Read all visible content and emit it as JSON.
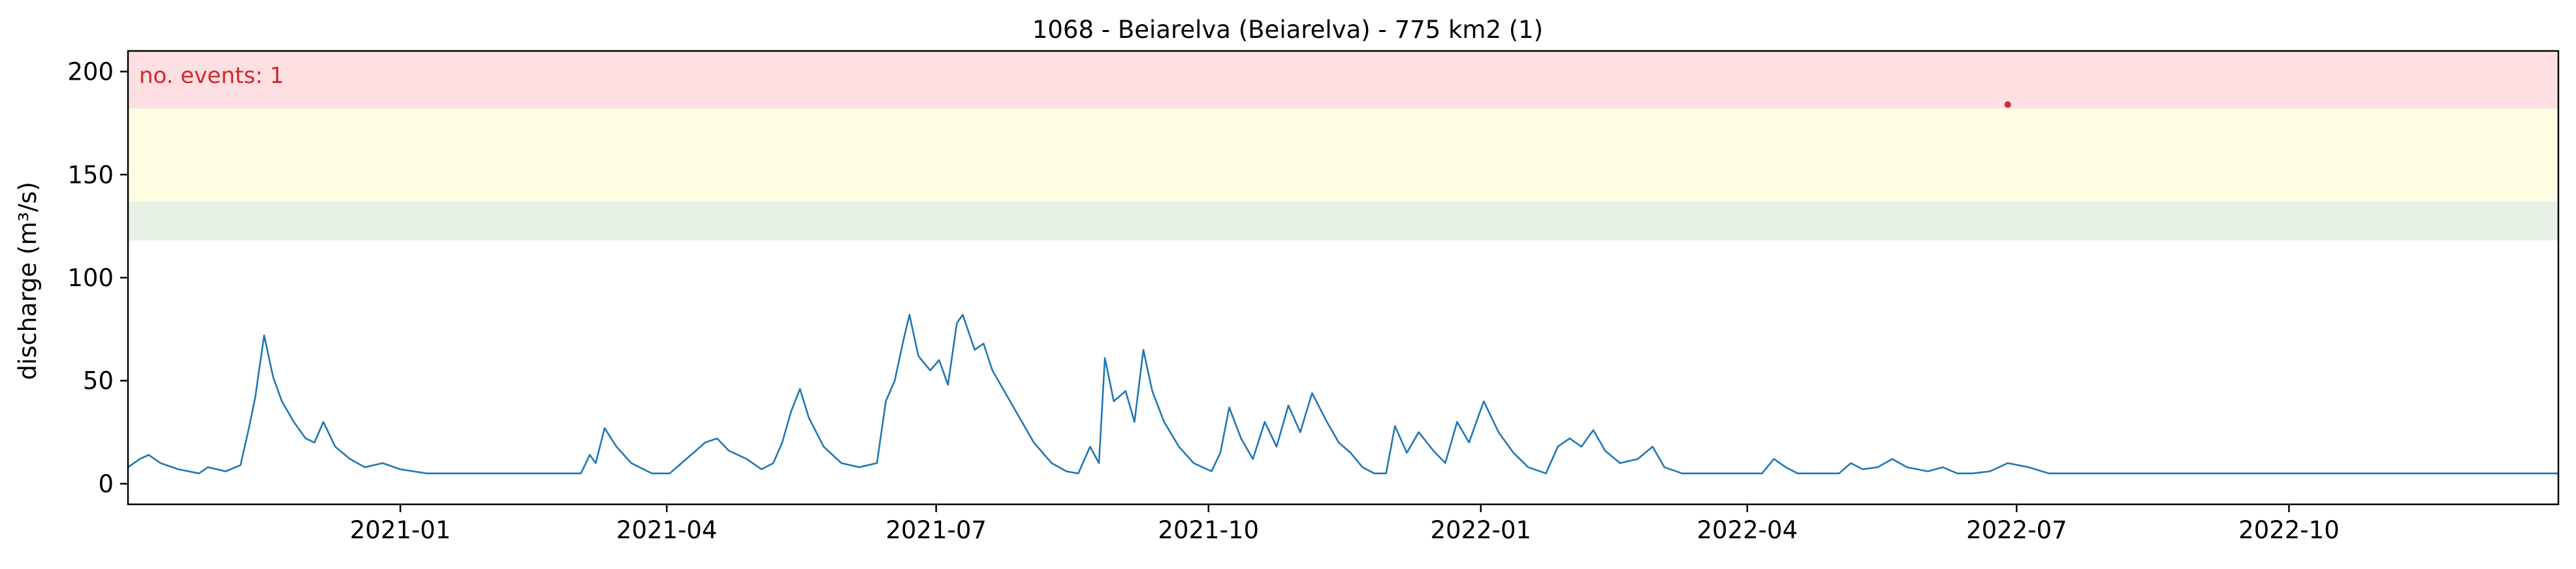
{
  "chart_data": {
    "type": "line",
    "title": "1068 - Beiarelva (Beiarelva) - 775 km2 (1)",
    "xlabel": "",
    "ylabel": "discharge (m³/s)",
    "x_range": [
      "2020-10-01",
      "2022-12-31"
    ],
    "ylim": [
      -10,
      210
    ],
    "y_ticks": [
      0,
      50,
      100,
      150,
      200
    ],
    "x_ticks": [
      {
        "date": "2021-01-01",
        "label": "2021-01"
      },
      {
        "date": "2021-04-01",
        "label": "2021-04"
      },
      {
        "date": "2021-07-01",
        "label": "2021-07"
      },
      {
        "date": "2021-10-01",
        "label": "2021-10"
      },
      {
        "date": "2022-01-01",
        "label": "2022-01"
      },
      {
        "date": "2022-04-01",
        "label": "2022-04"
      },
      {
        "date": "2022-07-01",
        "label": "2022-07"
      },
      {
        "date": "2022-10-01",
        "label": "2022-10"
      }
    ],
    "grid": false,
    "threshold_bands": [
      {
        "from": 118,
        "to": 137,
        "color": "#e7f1e5"
      },
      {
        "from": 137,
        "to": 182,
        "color": "#fefee2"
      },
      {
        "from": 182,
        "to": 210,
        "color": "#fee0e2"
      }
    ],
    "series": [
      {
        "color": "#1f77b4",
        "points": [
          [
            "2020-10-01",
            8
          ],
          [
            "2020-10-05",
            12
          ],
          [
            "2020-10-08",
            14
          ],
          [
            "2020-10-12",
            10
          ],
          [
            "2020-10-18",
            7
          ],
          [
            "2020-10-25",
            5
          ],
          [
            "2020-10-28",
            8
          ],
          [
            "2020-11-03",
            6
          ],
          [
            "2020-11-08",
            9
          ],
          [
            "2020-11-11",
            28
          ],
          [
            "2020-11-13",
            42
          ],
          [
            "2020-11-16",
            72
          ],
          [
            "2020-11-19",
            52
          ],
          [
            "2020-11-22",
            40
          ],
          [
            "2020-11-26",
            30
          ],
          [
            "2020-11-30",
            22
          ],
          [
            "2020-12-03",
            20
          ],
          [
            "2020-12-06",
            30
          ],
          [
            "2020-12-10",
            18
          ],
          [
            "2020-12-15",
            12
          ],
          [
            "2020-12-20",
            8
          ],
          [
            "2020-12-26",
            10
          ],
          [
            "2021-01-01",
            7
          ],
          [
            "2021-01-10",
            5
          ],
          [
            "2021-01-25",
            5
          ],
          [
            "2021-02-15",
            5
          ],
          [
            "2021-03-03",
            5
          ],
          [
            "2021-03-06",
            14
          ],
          [
            "2021-03-08",
            10
          ],
          [
            "2021-03-11",
            27
          ],
          [
            "2021-03-15",
            18
          ],
          [
            "2021-03-20",
            10
          ],
          [
            "2021-03-27",
            5
          ],
          [
            "2021-04-02",
            5
          ],
          [
            "2021-04-06",
            10
          ],
          [
            "2021-04-10",
            15
          ],
          [
            "2021-04-14",
            20
          ],
          [
            "2021-04-18",
            22
          ],
          [
            "2021-04-22",
            16
          ],
          [
            "2021-04-28",
            12
          ],
          [
            "2021-05-03",
            7
          ],
          [
            "2021-05-07",
            10
          ],
          [
            "2021-05-10",
            20
          ],
          [
            "2021-05-13",
            35
          ],
          [
            "2021-05-16",
            46
          ],
          [
            "2021-05-19",
            32
          ],
          [
            "2021-05-24",
            18
          ],
          [
            "2021-05-30",
            10
          ],
          [
            "2021-06-05",
            8
          ],
          [
            "2021-06-11",
            10
          ],
          [
            "2021-06-14",
            40
          ],
          [
            "2021-06-17",
            50
          ],
          [
            "2021-06-20",
            70
          ],
          [
            "2021-06-22",
            82
          ],
          [
            "2021-06-25",
            62
          ],
          [
            "2021-06-29",
            55
          ],
          [
            "2021-07-02",
            60
          ],
          [
            "2021-07-05",
            48
          ],
          [
            "2021-07-08",
            78
          ],
          [
            "2021-07-10",
            82
          ],
          [
            "2021-07-14",
            65
          ],
          [
            "2021-07-17",
            68
          ],
          [
            "2021-07-20",
            55
          ],
          [
            "2021-07-24",
            45
          ],
          [
            "2021-07-28",
            35
          ],
          [
            "2021-08-03",
            20
          ],
          [
            "2021-08-09",
            10
          ],
          [
            "2021-08-14",
            6
          ],
          [
            "2021-08-18",
            5
          ],
          [
            "2021-08-22",
            18
          ],
          [
            "2021-08-25",
            10
          ],
          [
            "2021-08-27",
            61
          ],
          [
            "2021-08-30",
            40
          ],
          [
            "2021-09-03",
            45
          ],
          [
            "2021-09-06",
            30
          ],
          [
            "2021-09-09",
            65
          ],
          [
            "2021-09-12",
            45
          ],
          [
            "2021-09-16",
            30
          ],
          [
            "2021-09-21",
            18
          ],
          [
            "2021-09-26",
            10
          ],
          [
            "2021-10-02",
            6
          ],
          [
            "2021-10-05",
            15
          ],
          [
            "2021-10-08",
            37
          ],
          [
            "2021-10-12",
            22
          ],
          [
            "2021-10-16",
            12
          ],
          [
            "2021-10-20",
            30
          ],
          [
            "2021-10-24",
            18
          ],
          [
            "2021-10-28",
            38
          ],
          [
            "2021-11-01",
            25
          ],
          [
            "2021-11-05",
            44
          ],
          [
            "2021-11-10",
            30
          ],
          [
            "2021-11-14",
            20
          ],
          [
            "2021-11-18",
            15
          ],
          [
            "2021-11-22",
            8
          ],
          [
            "2021-11-26",
            5
          ],
          [
            "2021-11-30",
            5
          ],
          [
            "2021-12-03",
            28
          ],
          [
            "2021-12-07",
            15
          ],
          [
            "2021-12-11",
            25
          ],
          [
            "2021-12-16",
            16
          ],
          [
            "2021-12-20",
            10
          ],
          [
            "2021-12-24",
            30
          ],
          [
            "2021-12-28",
            20
          ],
          [
            "2022-01-02",
            40
          ],
          [
            "2022-01-07",
            25
          ],
          [
            "2022-01-12",
            15
          ],
          [
            "2022-01-17",
            8
          ],
          [
            "2022-01-23",
            5
          ],
          [
            "2022-01-27",
            18
          ],
          [
            "2022-01-31",
            22
          ],
          [
            "2022-02-04",
            18
          ],
          [
            "2022-02-08",
            26
          ],
          [
            "2022-02-12",
            16
          ],
          [
            "2022-02-17",
            10
          ],
          [
            "2022-02-23",
            12
          ],
          [
            "2022-02-28",
            18
          ],
          [
            "2022-03-04",
            8
          ],
          [
            "2022-03-10",
            5
          ],
          [
            "2022-03-20",
            5
          ],
          [
            "2022-03-31",
            5
          ],
          [
            "2022-04-06",
            5
          ],
          [
            "2022-04-10",
            12
          ],
          [
            "2022-04-14",
            8
          ],
          [
            "2022-04-18",
            5
          ],
          [
            "2022-04-23",
            5
          ],
          [
            "2022-05-02",
            5
          ],
          [
            "2022-05-06",
            10
          ],
          [
            "2022-05-10",
            7
          ],
          [
            "2022-05-15",
            8
          ],
          [
            "2022-05-20",
            12
          ],
          [
            "2022-05-25",
            8
          ],
          [
            "2022-06-01",
            6
          ],
          [
            "2022-06-06",
            8
          ],
          [
            "2022-06-11",
            5
          ],
          [
            "2022-06-16",
            5
          ],
          [
            "2022-06-22",
            6
          ],
          [
            "2022-06-28",
            10
          ],
          [
            "2022-07-05",
            8
          ],
          [
            "2022-07-12",
            5
          ],
          [
            "2022-07-20",
            5
          ],
          [
            "2022-07-30",
            5
          ],
          [
            "2022-08-10",
            5
          ],
          [
            "2022-08-20",
            5
          ],
          [
            "2022-09-01",
            5
          ],
          [
            "2022-09-10",
            5
          ],
          [
            "2022-09-20",
            5
          ],
          [
            "2022-10-01",
            5
          ],
          [
            "2022-10-10",
            5
          ],
          [
            "2022-10-20",
            5
          ],
          [
            "2022-11-01",
            5
          ],
          [
            "2022-11-10",
            5
          ],
          [
            "2022-11-20",
            5
          ],
          [
            "2022-12-01",
            5
          ],
          [
            "2022-12-10",
            5
          ],
          [
            "2022-12-20",
            5
          ],
          [
            "2022-12-31",
            5
          ]
        ]
      }
    ],
    "events": [
      {
        "date": "2022-06-28",
        "value": 184,
        "color": "#d62728"
      }
    ],
    "annotation": {
      "text": "no. events: 1",
      "color": "#d62728"
    }
  }
}
